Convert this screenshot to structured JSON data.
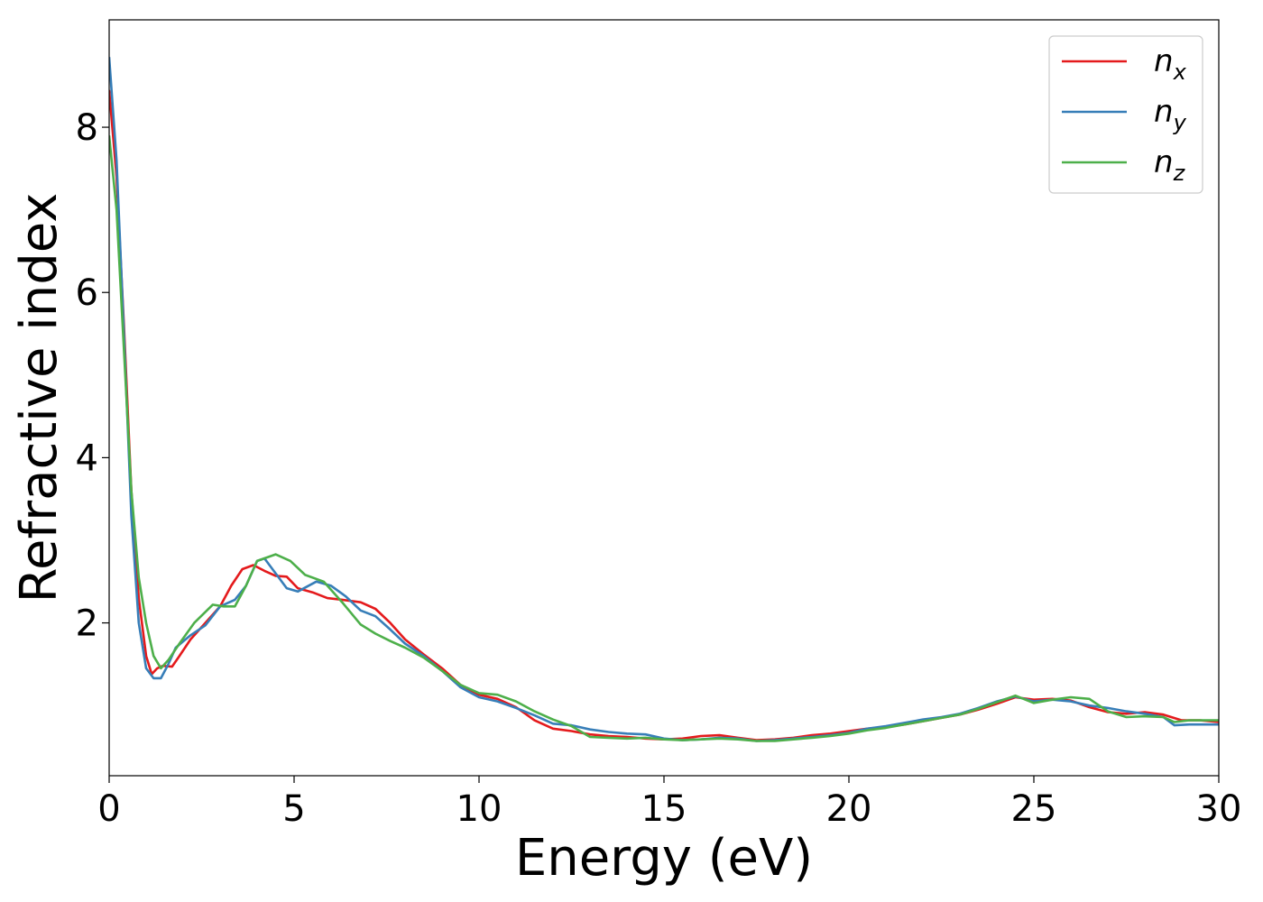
{
  "chart_data": {
    "type": "line",
    "xlabel": "Energy (eV)",
    "ylabel": "Refractive index",
    "xlim": [
      0,
      30
    ],
    "ylim": [
      0.15,
      9.3
    ],
    "xticks": [
      0,
      5,
      10,
      15,
      20,
      25,
      30
    ],
    "xtick_labels": [
      "0",
      "5",
      "10",
      "15",
      "20",
      "25",
      "30"
    ],
    "yticks": [
      2,
      4,
      6,
      8
    ],
    "ytick_labels": [
      "2",
      "4",
      "6",
      "8"
    ],
    "grid": false,
    "legend_position": "top-right",
    "series": [
      {
        "name": "n",
        "subscript": "x",
        "color": "#e41a1c",
        "points": [
          [
            0,
            8.45
          ],
          [
            0.2,
            7.4
          ],
          [
            0.4,
            5.6
          ],
          [
            0.6,
            3.6
          ],
          [
            0.8,
            2.3
          ],
          [
            1.0,
            1.6
          ],
          [
            1.15,
            1.38
          ],
          [
            1.3,
            1.45
          ],
          [
            1.45,
            1.48
          ],
          [
            1.7,
            1.47
          ],
          [
            1.9,
            1.6
          ],
          [
            2.2,
            1.8
          ],
          [
            2.6,
            2.0
          ],
          [
            3.0,
            2.2
          ],
          [
            3.3,
            2.45
          ],
          [
            3.6,
            2.65
          ],
          [
            3.9,
            2.7
          ],
          [
            4.2,
            2.63
          ],
          [
            4.5,
            2.57
          ],
          [
            4.8,
            2.56
          ],
          [
            5.1,
            2.42
          ],
          [
            5.5,
            2.37
          ],
          [
            5.9,
            2.3
          ],
          [
            6.3,
            2.28
          ],
          [
            6.8,
            2.25
          ],
          [
            7.2,
            2.17
          ],
          [
            7.6,
            2.0
          ],
          [
            8.0,
            1.8
          ],
          [
            8.5,
            1.62
          ],
          [
            9.0,
            1.45
          ],
          [
            9.5,
            1.25
          ],
          [
            10.0,
            1.13
          ],
          [
            10.5,
            1.08
          ],
          [
            11.0,
            0.98
          ],
          [
            11.5,
            0.82
          ],
          [
            12.0,
            0.72
          ],
          [
            12.5,
            0.69
          ],
          [
            13.0,
            0.65
          ],
          [
            13.5,
            0.63
          ],
          [
            14.0,
            0.62
          ],
          [
            14.5,
            0.6
          ],
          [
            15.0,
            0.59
          ],
          [
            15.5,
            0.6
          ],
          [
            16.0,
            0.63
          ],
          [
            16.5,
            0.64
          ],
          [
            17.0,
            0.61
          ],
          [
            17.5,
            0.58
          ],
          [
            18.0,
            0.59
          ],
          [
            18.5,
            0.61
          ],
          [
            19.0,
            0.64
          ],
          [
            19.5,
            0.66
          ],
          [
            20.0,
            0.69
          ],
          [
            20.5,
            0.72
          ],
          [
            21.0,
            0.74
          ],
          [
            21.5,
            0.77
          ],
          [
            22.0,
            0.81
          ],
          [
            22.5,
            0.85
          ],
          [
            23.0,
            0.89
          ],
          [
            23.5,
            0.95
          ],
          [
            24.0,
            1.02
          ],
          [
            24.5,
            1.1
          ],
          [
            25.0,
            1.07
          ],
          [
            25.5,
            1.08
          ],
          [
            26.0,
            1.06
          ],
          [
            26.5,
            0.98
          ],
          [
            27.0,
            0.92
          ],
          [
            27.5,
            0.9
          ],
          [
            28.0,
            0.92
          ],
          [
            28.5,
            0.89
          ],
          [
            29.0,
            0.82
          ],
          [
            29.5,
            0.82
          ],
          [
            30.0,
            0.8
          ]
        ]
      },
      {
        "name": "n",
        "subscript": "y",
        "color": "#377eb8",
        "points": [
          [
            0,
            8.85
          ],
          [
            0.2,
            7.6
          ],
          [
            0.4,
            5.5
          ],
          [
            0.6,
            3.3
          ],
          [
            0.8,
            2.0
          ],
          [
            1.0,
            1.45
          ],
          [
            1.2,
            1.33
          ],
          [
            1.4,
            1.33
          ],
          [
            1.6,
            1.5
          ],
          [
            1.8,
            1.7
          ],
          [
            2.2,
            1.85
          ],
          [
            2.6,
            1.97
          ],
          [
            3.0,
            2.2
          ],
          [
            3.4,
            2.28
          ],
          [
            3.7,
            2.45
          ],
          [
            4.0,
            2.75
          ],
          [
            4.2,
            2.78
          ],
          [
            4.5,
            2.6
          ],
          [
            4.8,
            2.42
          ],
          [
            5.1,
            2.38
          ],
          [
            5.6,
            2.5
          ],
          [
            6.0,
            2.45
          ],
          [
            6.4,
            2.32
          ],
          [
            6.8,
            2.15
          ],
          [
            7.2,
            2.08
          ],
          [
            7.6,
            1.92
          ],
          [
            8.0,
            1.75
          ],
          [
            8.5,
            1.6
          ],
          [
            9.0,
            1.42
          ],
          [
            9.5,
            1.22
          ],
          [
            10.0,
            1.1
          ],
          [
            10.5,
            1.05
          ],
          [
            11.0,
            0.97
          ],
          [
            11.5,
            0.88
          ],
          [
            12.0,
            0.78
          ],
          [
            12.5,
            0.76
          ],
          [
            13.0,
            0.71
          ],
          [
            13.5,
            0.68
          ],
          [
            14.0,
            0.66
          ],
          [
            14.5,
            0.65
          ],
          [
            15.0,
            0.6
          ],
          [
            15.5,
            0.58
          ],
          [
            16.0,
            0.59
          ],
          [
            16.5,
            0.61
          ],
          [
            17.0,
            0.6
          ],
          [
            17.5,
            0.57
          ],
          [
            18.0,
            0.58
          ],
          [
            18.5,
            0.6
          ],
          [
            19.0,
            0.62
          ],
          [
            19.5,
            0.64
          ],
          [
            20.0,
            0.67
          ],
          [
            20.5,
            0.72
          ],
          [
            21.0,
            0.75
          ],
          [
            21.5,
            0.79
          ],
          [
            22.0,
            0.83
          ],
          [
            22.5,
            0.86
          ],
          [
            23.0,
            0.9
          ],
          [
            23.5,
            0.97
          ],
          [
            24.0,
            1.05
          ],
          [
            24.5,
            1.11
          ],
          [
            25.0,
            1.05
          ],
          [
            25.5,
            1.07
          ],
          [
            26.0,
            1.05
          ],
          [
            26.5,
            1.0
          ],
          [
            27.0,
            0.97
          ],
          [
            27.5,
            0.93
          ],
          [
            28.0,
            0.9
          ],
          [
            28.5,
            0.86
          ],
          [
            28.8,
            0.76
          ],
          [
            29.2,
            0.77
          ],
          [
            30.0,
            0.77
          ]
        ]
      },
      {
        "name": "n",
        "subscript": "z",
        "color": "#4daf4a",
        "points": [
          [
            0,
            7.9
          ],
          [
            0.2,
            7.0
          ],
          [
            0.4,
            5.3
          ],
          [
            0.6,
            3.6
          ],
          [
            0.8,
            2.55
          ],
          [
            1.0,
            2.0
          ],
          [
            1.2,
            1.6
          ],
          [
            1.4,
            1.45
          ],
          [
            1.6,
            1.55
          ],
          [
            1.9,
            1.75
          ],
          [
            2.3,
            2.0
          ],
          [
            2.8,
            2.22
          ],
          [
            3.1,
            2.2
          ],
          [
            3.4,
            2.2
          ],
          [
            3.7,
            2.45
          ],
          [
            4.0,
            2.75
          ],
          [
            4.5,
            2.83
          ],
          [
            4.9,
            2.75
          ],
          [
            5.3,
            2.58
          ],
          [
            5.8,
            2.5
          ],
          [
            6.3,
            2.25
          ],
          [
            6.8,
            1.98
          ],
          [
            7.2,
            1.87
          ],
          [
            7.6,
            1.78
          ],
          [
            8.0,
            1.7
          ],
          [
            8.5,
            1.58
          ],
          [
            9.0,
            1.42
          ],
          [
            9.5,
            1.25
          ],
          [
            10.0,
            1.15
          ],
          [
            10.5,
            1.13
          ],
          [
            11.0,
            1.05
          ],
          [
            11.5,
            0.93
          ],
          [
            12.0,
            0.83
          ],
          [
            12.5,
            0.75
          ],
          [
            13.0,
            0.62
          ],
          [
            13.5,
            0.61
          ],
          [
            14.0,
            0.6
          ],
          [
            14.5,
            0.61
          ],
          [
            15.0,
            0.59
          ],
          [
            15.5,
            0.58
          ],
          [
            16.0,
            0.59
          ],
          [
            16.5,
            0.6
          ],
          [
            17.0,
            0.59
          ],
          [
            17.5,
            0.57
          ],
          [
            18.0,
            0.57
          ],
          [
            18.5,
            0.59
          ],
          [
            19.0,
            0.61
          ],
          [
            19.5,
            0.63
          ],
          [
            20.0,
            0.66
          ],
          [
            20.5,
            0.7
          ],
          [
            21.0,
            0.73
          ],
          [
            21.5,
            0.77
          ],
          [
            22.0,
            0.81
          ],
          [
            22.5,
            0.85
          ],
          [
            23.0,
            0.89
          ],
          [
            23.5,
            0.96
          ],
          [
            24.0,
            1.04
          ],
          [
            24.5,
            1.12
          ],
          [
            25.0,
            1.03
          ],
          [
            25.5,
            1.07
          ],
          [
            26.0,
            1.1
          ],
          [
            26.5,
            1.08
          ],
          [
            27.0,
            0.93
          ],
          [
            27.5,
            0.86
          ],
          [
            28.0,
            0.87
          ],
          [
            28.5,
            0.86
          ],
          [
            28.8,
            0.8
          ],
          [
            29.2,
            0.82
          ],
          [
            30.0,
            0.82
          ]
        ]
      }
    ]
  }
}
